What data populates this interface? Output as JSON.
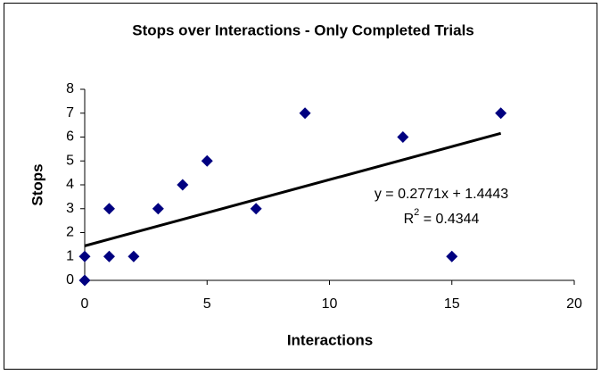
{
  "chart_data": {
    "type": "scatter",
    "title": "Stops over Interactions - Only Completed Trials",
    "x_label": "Interactions",
    "y_label": "Stops",
    "x": [
      0,
      0,
      1,
      1,
      2,
      3,
      4,
      5,
      7,
      9,
      13,
      15,
      17
    ],
    "values": [
      0,
      1,
      1,
      3,
      1,
      3,
      4,
      5,
      3,
      7,
      6,
      1,
      7
    ],
    "color": "#000080",
    "xlim": [
      0,
      20
    ],
    "xticks": [
      0,
      5,
      10,
      15,
      20
    ],
    "ylim": [
      0,
      8
    ],
    "yticks": [
      0,
      1,
      2,
      3,
      4,
      5,
      6,
      7,
      8
    ],
    "grid": false,
    "trendline": {
      "slope": 0.2771,
      "intercept": 1.4443,
      "color": "#000000",
      "equation": "y = 0.2771x + 1.4443",
      "r2_label": [
        "R",
        "2",
        " = 0.4344"
      ]
    }
  }
}
